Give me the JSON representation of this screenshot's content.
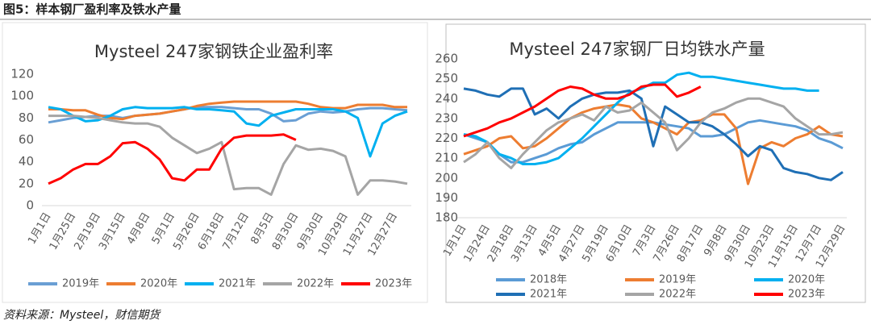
{
  "title": "图5：样本钢厂盈利率及铁水产量",
  "source": "资料来源：Mysteel，财信期货",
  "chart_data": [
    {
      "type": "line",
      "title": "Mysteel 247家钢铁企业盈利率",
      "categories": [
        "1月1日",
        null,
        "1月25日",
        null,
        "2月19日",
        null,
        "3月15日",
        null,
        "4月8日",
        null,
        "5月1日",
        null,
        "5月26日",
        null,
        "6月18日",
        null,
        "7月12日",
        null,
        "8月5日",
        null,
        "8月30日",
        null,
        "9月30日",
        null,
        "10月29日",
        null,
        "11月27日",
        null,
        "12月27日",
        null
      ],
      "ylim": [
        0,
        120
      ],
      "yticks": [
        0,
        20,
        40,
        60,
        80,
        100,
        120
      ],
      "grid": false,
      "legend": "bottom",
      "series": [
        {
          "name": "2019年",
          "color": "#6a9fd4",
          "values": [
            76,
            78,
            80,
            81,
            82,
            82,
            80,
            82,
            83,
            84,
            86,
            88,
            90,
            90,
            90,
            89,
            88,
            88,
            84,
            77,
            78,
            84,
            86,
            85,
            86,
            88,
            89,
            89,
            88,
            87
          ]
        },
        {
          "name": "2020年",
          "color": "#ed7d31",
          "values": [
            88,
            88,
            87,
            87,
            83,
            80,
            79,
            82,
            83,
            84,
            86,
            88,
            91,
            93,
            94,
            95,
            95,
            95,
            95,
            95,
            95,
            93,
            90,
            89,
            89,
            92,
            92,
            92,
            90,
            90
          ]
        },
        {
          "name": "2021年",
          "color": "#00b0f0",
          "values": [
            90,
            88,
            82,
            77,
            78,
            82,
            88,
            90,
            89,
            89,
            89,
            90,
            88,
            88,
            87,
            86,
            75,
            73,
            82,
            85,
            88,
            88,
            88,
            88,
            86,
            80,
            45,
            75,
            82,
            86
          ]
        },
        {
          "name": "2022年",
          "color": "#a5a5a5",
          "values": [
            82,
            82,
            82,
            81,
            80,
            78,
            76,
            75,
            75,
            72,
            62,
            55,
            48,
            52,
            58,
            15,
            16,
            16,
            10,
            38,
            55,
            51,
            52,
            50,
            45,
            10,
            23,
            23,
            22,
            20
          ]
        },
        {
          "name": "2023年",
          "color": "#ff0000",
          "values": [
            20,
            25,
            33,
            38,
            38,
            45,
            57,
            58,
            52,
            42,
            25,
            23,
            33,
            33,
            52,
            62,
            64,
            64,
            64,
            65,
            60,
            null,
            null,
            null,
            null,
            null,
            null,
            null,
            null,
            null
          ]
        }
      ]
    },
    {
      "type": "line",
      "title": "Mysteel 247家钢厂日均铁水产量",
      "categories": [
        "1月1日",
        null,
        "1月24日",
        null,
        "2月18日",
        null,
        "3月13日",
        null,
        "4月5日",
        null,
        "4月27日",
        null,
        "5月19日",
        null,
        "6月10日",
        null,
        "7月3日",
        null,
        "7月26日",
        null,
        "8月17日",
        null,
        "9月8日",
        null,
        "9月30日",
        null,
        "10月23日",
        null,
        "11月15日",
        null,
        "12月7日",
        null,
        "12月29日"
      ],
      "ylim": [
        180,
        260
      ],
      "yticks": [
        180,
        190,
        200,
        210,
        220,
        230,
        240,
        250,
        260
      ],
      "grid": false,
      "legend": "bottom",
      "series": [
        {
          "name": "2018年",
          "color": "#5b9bd5",
          "values": [
            222,
            220,
            218,
            212,
            208,
            208,
            210,
            212,
            215,
            217,
            218,
            222,
            225,
            228,
            228,
            228,
            228,
            227,
            226,
            225,
            221,
            221,
            222,
            225,
            228,
            229,
            228,
            227,
            226,
            224,
            220,
            218,
            215
          ]
        },
        {
          "name": "2019年",
          "color": "#ed7d31",
          "values": [
            212,
            214,
            216,
            220,
            221,
            215,
            216,
            220,
            225,
            230,
            233,
            235,
            236,
            237,
            236,
            230,
            228,
            225,
            222,
            228,
            229,
            232,
            232,
            225,
            197,
            215,
            218,
            216,
            220,
            222,
            226,
            222,
            221
          ]
        },
        {
          "name": "2020年",
          "color": "#00b0f0",
          "values": [
            222,
            221,
            218,
            212,
            210,
            207,
            207,
            208,
            210,
            215,
            220,
            226,
            232,
            238,
            243,
            245,
            248,
            248,
            252,
            253,
            251,
            251,
            250,
            249,
            248,
            247,
            246,
            245,
            245,
            244,
            244,
            null,
            null
          ]
        },
        {
          "name": "2021年",
          "color": "#1f6fb5",
          "values": [
            245,
            244,
            242,
            241,
            245,
            245,
            232,
            235,
            230,
            236,
            240,
            242,
            243,
            243,
            244,
            240,
            216,
            236,
            232,
            228,
            228,
            226,
            222,
            217,
            211,
            216,
            214,
            205,
            203,
            202,
            200,
            199,
            203
          ]
        },
        {
          "name": "2022年",
          "color": "#a5a5a5",
          "values": [
            208,
            212,
            218,
            210,
            205,
            212,
            218,
            224,
            228,
            230,
            232,
            229,
            236,
            233,
            234,
            238,
            233,
            228,
            214,
            220,
            228,
            233,
            235,
            238,
            240,
            240,
            238,
            236,
            230,
            226,
            222,
            222,
            223
          ]
        },
        {
          "name": "2023年",
          "color": "#ff0000",
          "values": [
            221,
            223,
            225,
            228,
            230,
            233,
            236,
            240,
            244,
            246,
            245,
            242,
            240,
            240,
            242,
            246,
            247,
            247,
            241,
            243,
            246,
            null,
            null,
            null,
            null,
            null,
            null,
            null,
            null,
            null,
            null,
            null,
            null
          ]
        }
      ]
    }
  ]
}
